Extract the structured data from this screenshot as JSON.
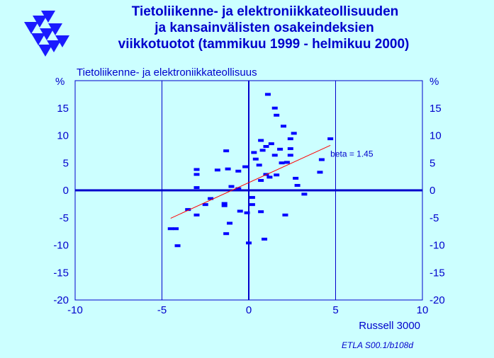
{
  "chart_data": {
    "type": "scatter",
    "title": [
      "Tietoliikenne-  ja  elektroniikkateollisuuden",
      "ja  kansainvälisten  osakeindeksien",
      "viikkotuotot (tammikuu 1999 - helmikuu 2000)"
    ],
    "ylabel": "Tietoliikenne- ja elektroniikkateollisuus",
    "xlabel": "Russell 3000",
    "y_unit": "%",
    "source": "ETLA S00.1/b108d",
    "xlim": [
      -10,
      10
    ],
    "ylim": [
      -20,
      20
    ],
    "x_ticks": [
      -10,
      -5,
      0,
      5,
      10
    ],
    "y_ticks": [
      15,
      10,
      5,
      0,
      -5,
      -10,
      -15,
      -20
    ],
    "grid": true,
    "colors": {
      "points": "#0000ff",
      "regression": "#ff0000",
      "text": "#0000cc",
      "background": "#ccffff"
    },
    "regression": {
      "label": "beta = 1.45",
      "x": [
        -4.5,
        4.7
      ],
      "y": [
        -5.1,
        8.2
      ]
    },
    "points": [
      {
        "x": 1.1,
        "y": 17.5
      },
      {
        "x": 1.5,
        "y": 15.0
      },
      {
        "x": 1.6,
        "y": 13.7
      },
      {
        "x": 2.0,
        "y": 11.7
      },
      {
        "x": 2.6,
        "y": 10.4
      },
      {
        "x": 2.4,
        "y": 9.4
      },
      {
        "x": 4.7,
        "y": 9.4
      },
      {
        "x": 0.7,
        "y": 9.1
      },
      {
        "x": 1.3,
        "y": 8.5
      },
      {
        "x": 1.0,
        "y": 8.0
      },
      {
        "x": 0.8,
        "y": 7.3
      },
      {
        "x": 1.8,
        "y": 7.5
      },
      {
        "x": 2.4,
        "y": 7.6
      },
      {
        "x": -1.3,
        "y": 7.2
      },
      {
        "x": 0.3,
        "y": 6.9
      },
      {
        "x": 1.5,
        "y": 6.4
      },
      {
        "x": 2.4,
        "y": 6.4
      },
      {
        "x": 0.4,
        "y": 5.7
      },
      {
        "x": 4.2,
        "y": 5.6
      },
      {
        "x": 1.9,
        "y": 5.0
      },
      {
        "x": 2.2,
        "y": 5.1
      },
      {
        "x": -0.2,
        "y": 4.3
      },
      {
        "x": -3.0,
        "y": 3.8
      },
      {
        "x": -1.8,
        "y": 3.7
      },
      {
        "x": -1.2,
        "y": 3.9
      },
      {
        "x": -0.6,
        "y": 3.5
      },
      {
        "x": 0.6,
        "y": 4.6
      },
      {
        "x": 4.1,
        "y": 3.3
      },
      {
        "x": -3.0,
        "y": 2.9
      },
      {
        "x": 1.0,
        "y": 2.9
      },
      {
        "x": 1.6,
        "y": 2.8
      },
      {
        "x": 1.2,
        "y": 2.4
      },
      {
        "x": 2.7,
        "y": 2.2
      },
      {
        "x": 0.7,
        "y": 1.8
      },
      {
        "x": 2.8,
        "y": 0.9
      },
      {
        "x": -3.0,
        "y": 0.5
      },
      {
        "x": -1.0,
        "y": 0.7
      },
      {
        "x": -0.6,
        "y": 0.3
      },
      {
        "x": 3.2,
        "y": -0.7
      },
      {
        "x": 0.2,
        "y": -1.3
      },
      {
        "x": -2.2,
        "y": -1.5
      },
      {
        "x": -1.4,
        "y": -2.4
      },
      {
        "x": -2.5,
        "y": -2.6
      },
      {
        "x": -1.4,
        "y": -2.8
      },
      {
        "x": 0.2,
        "y": -2.6
      },
      {
        "x": -3.5,
        "y": -3.5
      },
      {
        "x": -0.5,
        "y": -3.8
      },
      {
        "x": 0.7,
        "y": -3.9
      },
      {
        "x": -0.1,
        "y": -4.1
      },
      {
        "x": -3.0,
        "y": -4.5
      },
      {
        "x": 2.1,
        "y": -4.5
      },
      {
        "x": -1.1,
        "y": -6.0
      },
      {
        "x": -4.5,
        "y": -7.0
      },
      {
        "x": -4.2,
        "y": -7.0
      },
      {
        "x": -1.3,
        "y": -7.9
      },
      {
        "x": 0.9,
        "y": -8.9
      },
      {
        "x": 0.0,
        "y": -9.6
      },
      {
        "x": -4.1,
        "y": -10.1
      }
    ]
  }
}
